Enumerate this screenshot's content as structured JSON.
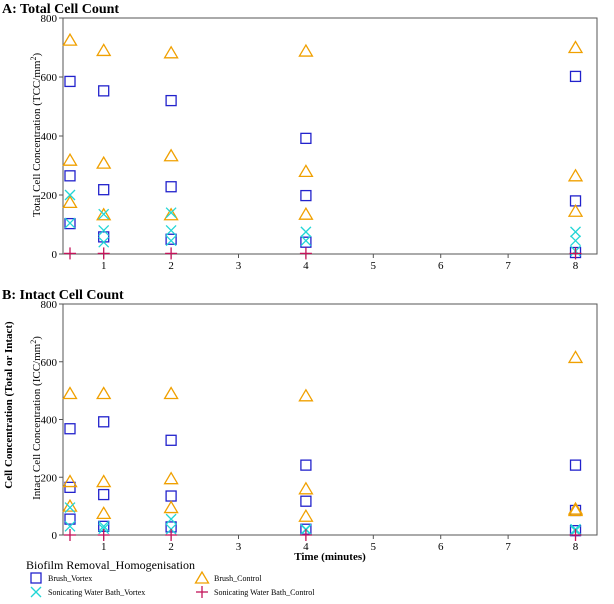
{
  "shared_ylabel": "Cell Concentration (Total or Intact)",
  "xlabel": "Time (minutes)",
  "legend": {
    "title": "Biofilm Removal_Homogenisation",
    "entries": [
      "Brush_Vortex",
      "Brush_Control",
      "Sonicating Water Bath_Vortex",
      "Sonicating Water Bath_Control"
    ]
  },
  "colors": {
    "Brush_Vortex": "#2222cc",
    "Brush_Control": "#f0a000",
    "Sonicating Water Bath_Vortex": "#22d6d6",
    "Sonicating Water Bath_Control": "#c4145a"
  },
  "chart_data": [
    {
      "type": "scatter",
      "title": "A: Total Cell Count",
      "ylabel_main": "Total Cell Concentration (TCC/mm",
      "ylabel_sup": "2",
      "ylabel_end": ")",
      "xlim": [
        0.5,
        8.2
      ],
      "ylim": [
        0,
        800
      ],
      "xticks": [
        1,
        2,
        3,
        4,
        5,
        6,
        7,
        8
      ],
      "yticks": [
        0,
        200,
        400,
        600,
        800
      ],
      "series": [
        {
          "name": "Brush_Vortex",
          "marker": "square",
          "points": [
            [
              0.5,
              585
            ],
            [
              0.5,
              265
            ],
            [
              0.5,
              103
            ],
            [
              1,
              553
            ],
            [
              1,
              218
            ],
            [
              1,
              58
            ],
            [
              2,
              520
            ],
            [
              2,
              228
            ],
            [
              2,
              50
            ],
            [
              4,
              392
            ],
            [
              4,
              198
            ],
            [
              4,
              40
            ],
            [
              8,
              602
            ],
            [
              8,
              180
            ],
            [
              8,
              5
            ]
          ]
        },
        {
          "name": "Brush_Control",
          "marker": "triangle",
          "points": [
            [
              0.5,
              725
            ],
            [
              0.5,
              318
            ],
            [
              0.5,
              175
            ],
            [
              1,
              690
            ],
            [
              1,
              308
            ],
            [
              1,
              133
            ],
            [
              2,
              682
            ],
            [
              2,
              333
            ],
            [
              2,
              133
            ],
            [
              4,
              688
            ],
            [
              4,
              280
            ],
            [
              4,
              135
            ],
            [
              8,
              700
            ],
            [
              8,
              265
            ],
            [
              8,
              145
            ]
          ]
        },
        {
          "name": "Sonicating Water Bath_Vortex",
          "marker": "x",
          "points": [
            [
              0.5,
              200
            ],
            [
              0.5,
              105
            ],
            [
              1,
              135
            ],
            [
              1,
              80
            ],
            [
              1,
              40
            ],
            [
              2,
              140
            ],
            [
              2,
              80
            ],
            [
              2,
              45
            ],
            [
              4,
              75
            ],
            [
              4,
              45
            ],
            [
              8,
              75
            ],
            [
              8,
              45
            ],
            [
              8,
              10
            ]
          ]
        },
        {
          "name": "Sonicating Water Bath_Control",
          "marker": "plus",
          "points": [
            [
              0.5,
              2
            ],
            [
              1,
              2
            ],
            [
              2,
              2
            ],
            [
              4,
              2
            ],
            [
              8,
              2
            ]
          ]
        }
      ]
    },
    {
      "type": "scatter",
      "title": "B: Intact Cell Count",
      "ylabel_main": "Intact Cell Concentration (ICC/mm",
      "ylabel_sup": "2",
      "ylabel_end": ")",
      "xlim": [
        0.5,
        8.2
      ],
      "ylim": [
        0,
        800
      ],
      "xticks": [
        1,
        2,
        3,
        4,
        5,
        6,
        7,
        8
      ],
      "yticks": [
        0,
        200,
        400,
        600,
        800
      ],
      "series": [
        {
          "name": "Brush_Vortex",
          "marker": "square",
          "points": [
            [
              0.5,
              368
            ],
            [
              0.5,
              165
            ],
            [
              0.5,
              55
            ],
            [
              1,
              392
            ],
            [
              1,
              140
            ],
            [
              1,
              30
            ],
            [
              2,
              328
            ],
            [
              2,
              135
            ],
            [
              2,
              28
            ],
            [
              4,
              242
            ],
            [
              4,
              117
            ],
            [
              4,
              20
            ],
            [
              8,
              242
            ],
            [
              8,
              85
            ],
            [
              8,
              15
            ]
          ]
        },
        {
          "name": "Brush_Control",
          "marker": "triangle",
          "points": [
            [
              0.5,
              490
            ],
            [
              0.5,
              185
            ],
            [
              0.5,
              100
            ],
            [
              1,
              490
            ],
            [
              1,
              185
            ],
            [
              1,
              75
            ],
            [
              2,
              490
            ],
            [
              2,
              195
            ],
            [
              2,
              95
            ],
            [
              4,
              482
            ],
            [
              4,
              160
            ],
            [
              4,
              65
            ],
            [
              8,
              615
            ],
            [
              8,
              90
            ],
            [
              8,
              85
            ]
          ]
        },
        {
          "name": "Sonicating Water Bath_Vortex",
          "marker": "x",
          "points": [
            [
              0.5,
              95
            ],
            [
              0.5,
              30
            ],
            [
              1,
              30
            ],
            [
              1,
              22
            ],
            [
              2,
              55
            ],
            [
              2,
              20
            ],
            [
              4,
              20
            ],
            [
              4,
              18
            ],
            [
              8,
              20
            ],
            [
              8,
              15
            ]
          ]
        },
        {
          "name": "Sonicating Water Bath_Control",
          "marker": "plus",
          "points": [
            [
              0.5,
              0
            ],
            [
              1,
              0
            ],
            [
              2,
              0
            ],
            [
              4,
              0
            ],
            [
              8,
              0
            ]
          ]
        }
      ]
    }
  ]
}
